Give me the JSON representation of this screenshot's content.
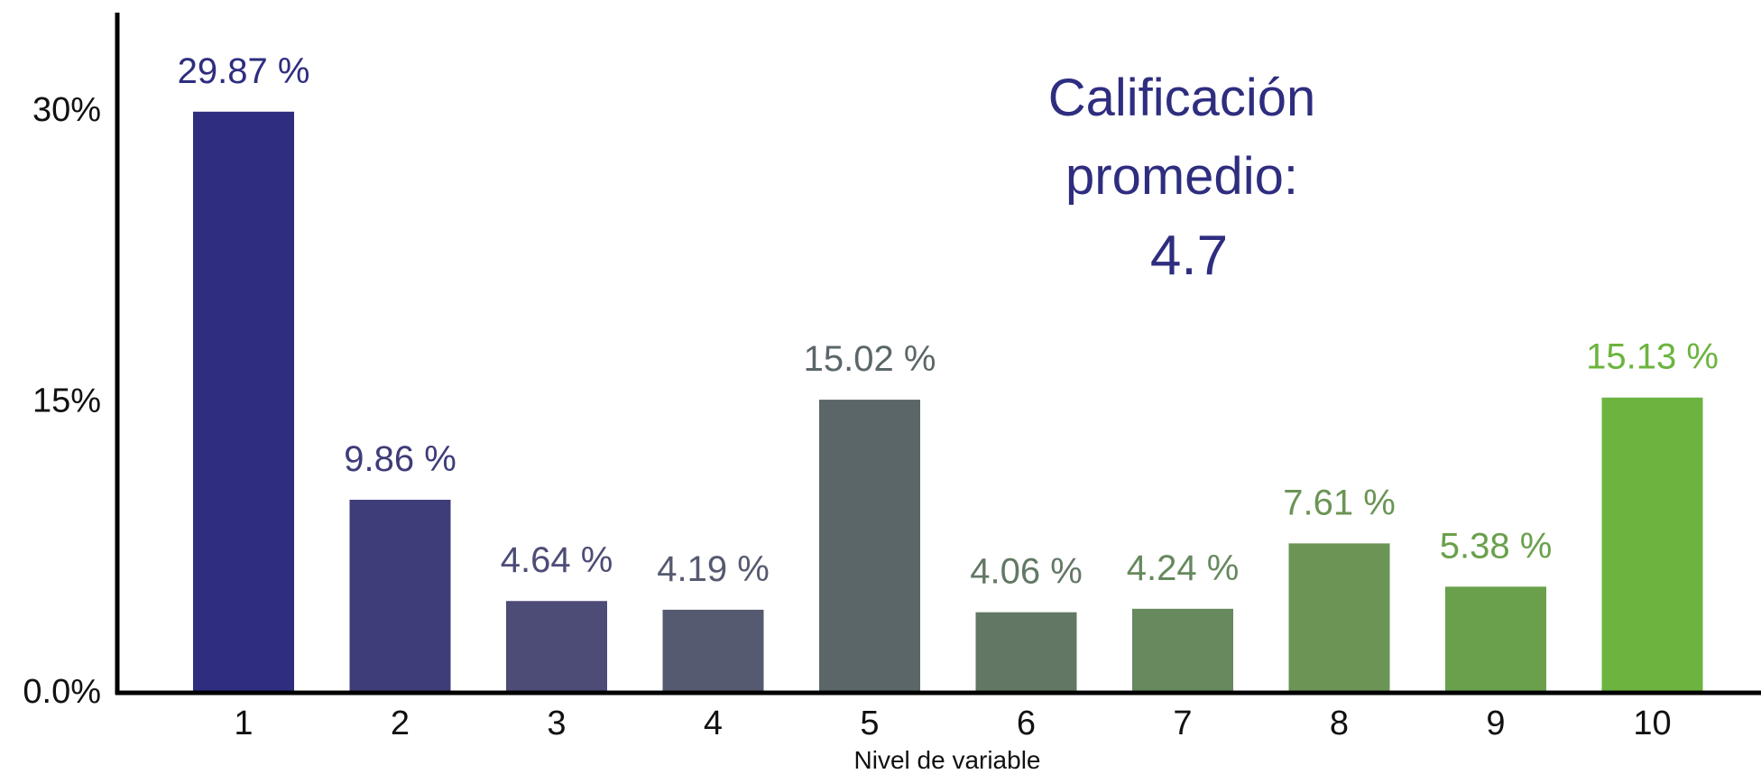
{
  "chart_data": {
    "type": "bar",
    "categories": [
      "1",
      "2",
      "3",
      "4",
      "5",
      "6",
      "7",
      "8",
      "9",
      "10"
    ],
    "values": [
      29.87,
      9.86,
      4.64,
      4.19,
      15.02,
      4.06,
      4.24,
      7.61,
      5.38,
      15.13
    ],
    "value_labels": [
      "29.87 %",
      "9.86 %",
      "4.64 %",
      "4.19 %",
      "15.02 %",
      "4.06 %",
      "4.24 %",
      "7.61 %",
      "5.38 %",
      "15.13 %"
    ],
    "bar_colors": [
      "#2e2d7f",
      "#3e3c79",
      "#4d4c77",
      "#565a70",
      "#5b6668",
      "#627864",
      "#66895d",
      "#6b9455",
      "#6aa04c",
      "#6cb43f"
    ],
    "yticks": [
      0,
      15,
      30
    ],
    "ytick_labels": [
      "0.0%",
      "15%",
      "30%"
    ],
    "ylim": [
      0,
      35
    ],
    "xlabel": "Nivel de variable",
    "ylabel": "",
    "grid": false,
    "annotation": {
      "lines": [
        "Calificación",
        "promedio:",
        "4.7"
      ],
      "color": "#2e2d7f"
    }
  }
}
